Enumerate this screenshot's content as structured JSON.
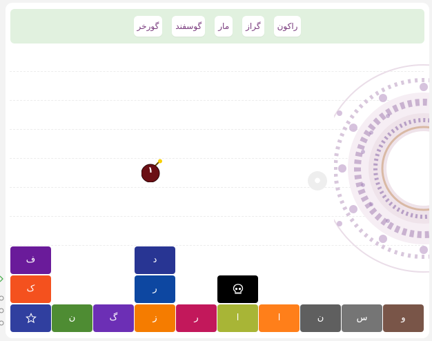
{
  "words": [
    "راکون",
    "گراز",
    "مار",
    "گوسفند",
    "گورخر"
  ],
  "bomb": {
    "label": "۱",
    "color": "#6b0f14"
  },
  "skull": {
    "icon": "skull-icon",
    "color": "#000000"
  },
  "stacked_tiles": [
    {
      "letter": "ف",
      "color": "#6a1b9a"
    },
    {
      "letter": "ک",
      "color": "#f4511e"
    },
    {
      "letter": "د",
      "color": "#283593"
    },
    {
      "letter": "ر",
      "color": "#0d47a1"
    }
  ],
  "bottom_row": [
    {
      "letter": "",
      "icon": "star-icon",
      "color": "#303f9f"
    },
    {
      "letter": "ن",
      "color": "#4e8c33"
    },
    {
      "letter": "گ",
      "color": "#6c2fb5"
    },
    {
      "letter": "ز",
      "color": "#f57c00"
    },
    {
      "letter": "ر",
      "color": "#c2185b"
    },
    {
      "letter": "ا",
      "color": "#a8b536"
    },
    {
      "letter": "ا",
      "color": "#ff7f1a"
    },
    {
      "letter": "ن",
      "color": "#5f5f5f"
    },
    {
      "letter": "س",
      "color": "#757575"
    },
    {
      "letter": "و",
      "color": "#795548"
    }
  ]
}
